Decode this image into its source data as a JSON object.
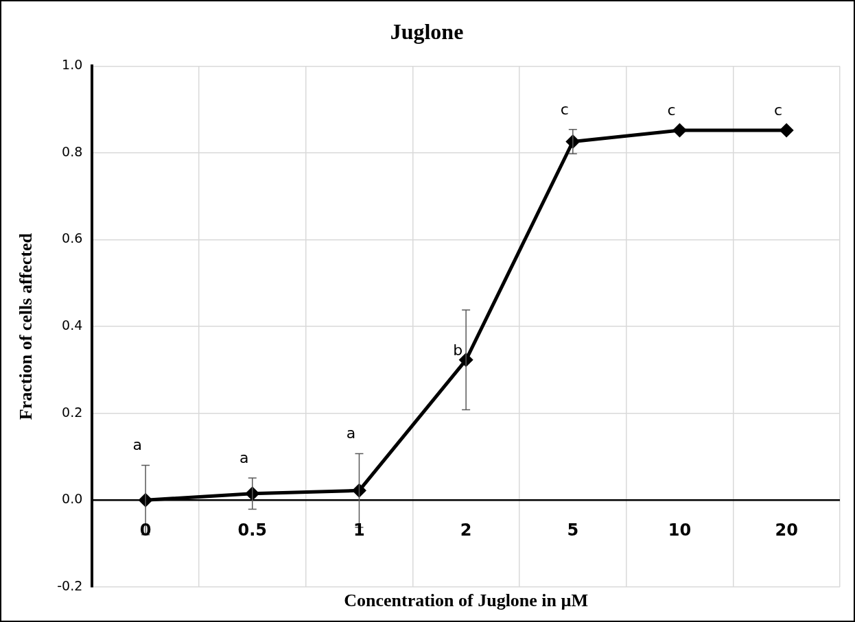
{
  "chart_data": {
    "type": "line",
    "title": "Juglone",
    "xlabel": "Concentration of Juglone in µM",
    "ylabel": "Fraction of cells affected",
    "categories": [
      "0",
      "0.5",
      "1",
      "2",
      "5",
      "10",
      "20"
    ],
    "series": [
      {
        "color": "#000000",
        "values": [
          0,
          0.015,
          0.022,
          0.323,
          0.826,
          0.852,
          0.852
        ],
        "errors": [
          0.08,
          0.036,
          0.085,
          0.115,
          0.028,
          null,
          null
        ]
      }
    ],
    "ylim": [
      -0.2,
      1.0
    ],
    "yticks": [
      {
        "value": -0.2,
        "label": "-0.2"
      },
      {
        "value": 0,
        "label": "0.0"
      },
      {
        "value": 0.2,
        "label": "0.2"
      },
      {
        "value": 0.4,
        "label": "0.4"
      },
      {
        "value": 0.6,
        "label": "0.6"
      },
      {
        "value": 0.8,
        "label": "0.8"
      },
      {
        "value": 1.0,
        "label": "1.0"
      }
    ],
    "annotations": [
      "a",
      "a",
      "a",
      "b",
      "c",
      "c",
      "c"
    ],
    "grid": true,
    "legend": false,
    "marker": "diamond",
    "line_style": "solid"
  }
}
